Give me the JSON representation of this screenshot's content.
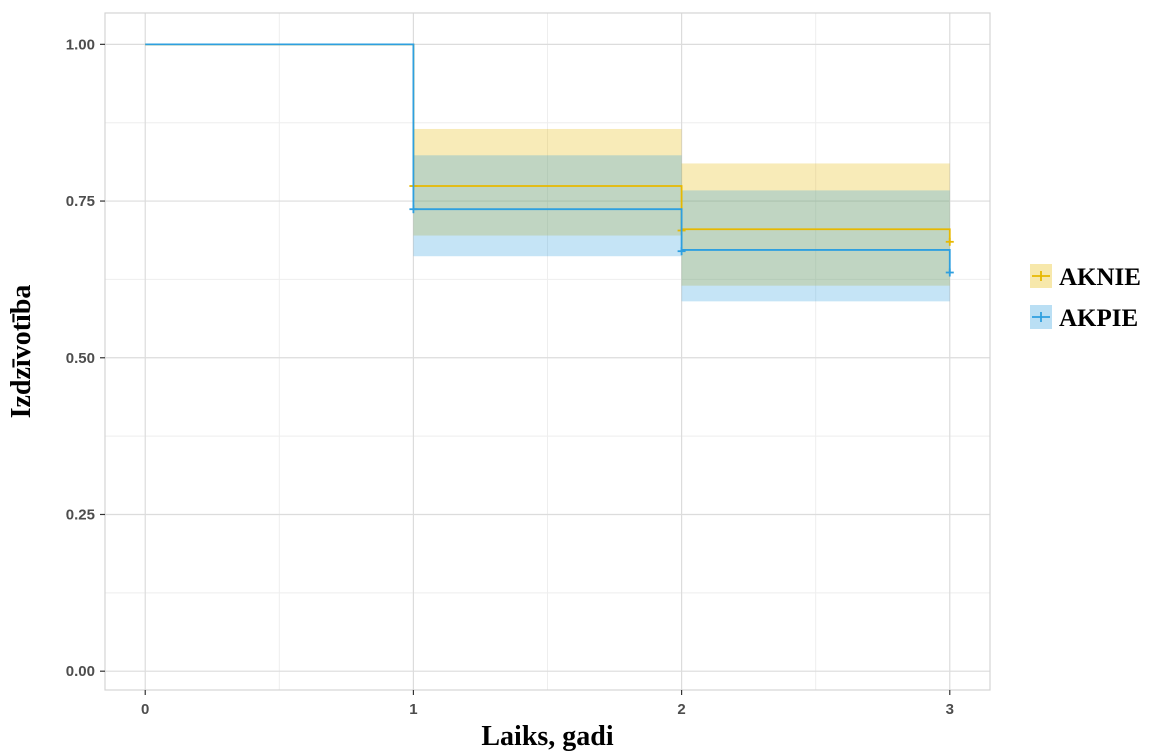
{
  "chart_data": {
    "type": "line",
    "subtype": "kaplan-meier step survival curves with confidence bands",
    "xlabel": "Laiks, gadi",
    "ylabel": "Izdzīvotība",
    "xlim": [
      -0.15,
      3.15
    ],
    "ylim": [
      -0.03,
      1.05
    ],
    "x_ticks": [
      {
        "value": 0,
        "label": "0"
      },
      {
        "value": 1,
        "label": "1"
      },
      {
        "value": 2,
        "label": "2"
      },
      {
        "value": 3,
        "label": "3"
      }
    ],
    "y_ticks": [
      {
        "value": 0,
        "label": "0.00"
      },
      {
        "value": 0.25,
        "label": "0.25"
      },
      {
        "value": 0.5,
        "label": "0.50"
      },
      {
        "value": 0.75,
        "label": "0.75"
      },
      {
        "value": 1,
        "label": "1.00"
      }
    ],
    "x_minor_gridlines": [
      0.5,
      1.5,
      2.5
    ],
    "y_minor_gridlines": [
      0.125,
      0.375,
      0.625,
      0.875
    ],
    "grid": true,
    "legend": {
      "position": "right"
    },
    "series": [
      {
        "name": "AKNIE",
        "color": "#E7B800",
        "fill_color": "#E7B800",
        "step_times": [
          0,
          1,
          2,
          3
        ],
        "survival": [
          1.0,
          0.774,
          0.705,
          0.685
        ],
        "ci_lower": [
          1.0,
          0.695,
          0.615,
          0.615
        ],
        "ci_upper": [
          1.0,
          0.865,
          0.81,
          0.81
        ],
        "censor_marks": [
          {
            "x": 1,
            "y": 0.774
          },
          {
            "x": 2,
            "y": 0.703
          },
          {
            "x": 3,
            "y": 0.685
          }
        ]
      },
      {
        "name": "AKPIE",
        "color": "#2E9FDF",
        "fill_color": "#2E9FDF",
        "step_times": [
          0,
          1,
          2,
          3
        ],
        "survival": [
          1.0,
          0.737,
          0.672,
          0.636
        ],
        "ci_lower": [
          1.0,
          0.662,
          0.59,
          0.59
        ],
        "ci_upper": [
          1.0,
          0.823,
          0.767,
          0.767
        ],
        "censor_marks": [
          {
            "x": 1,
            "y": 0.737
          },
          {
            "x": 2,
            "y": 0.67
          },
          {
            "x": 3,
            "y": 0.636
          }
        ]
      }
    ],
    "band_opacity": 0.28,
    "colors": {
      "panel_border": "#d4d4d4",
      "major_grid": "#dcdcdc",
      "minor_grid": "#eeeeee"
    }
  }
}
